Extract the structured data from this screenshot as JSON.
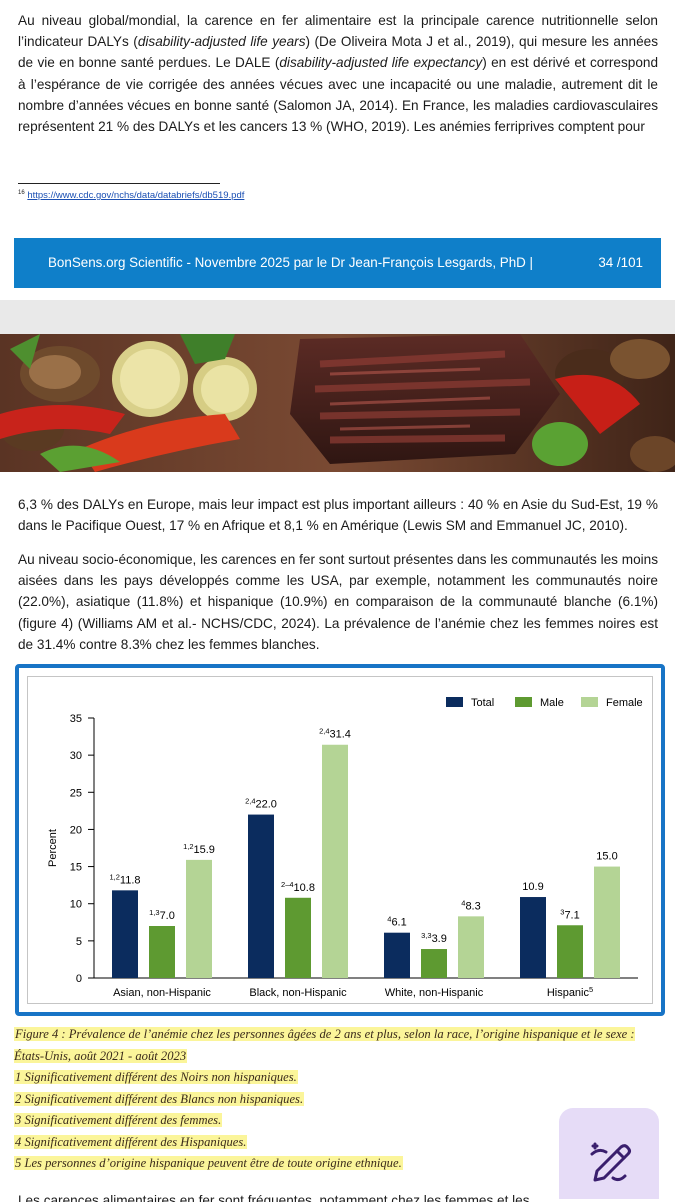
{
  "paragraph1": {
    "t1": "Au niveau global/mondial, la carence en fer alimentaire est la principale carence nutritionnelle selon l’indicateur DALYs (",
    "em1": "disability-adjusted life years",
    "t2": ") (De Oliveira Mota J et al., 2019), qui mesure les années de vie en bonne santé perdues. Le DALE (",
    "em2": "disability-adjusted life expectancy",
    "t3": ") en est dérivé et correspond à l’espérance de vie corrigée des années vécues avec une incapacité ou une maladie, autrement dit le nombre d’années vécues en bonne santé (Salomon JA, 2014). En France, les maladies cardiovasculaires représentent 21 % des DALYs et les cancers 13 % (WHO, 2019). Les anémies ferriprives comptent pour"
  },
  "footnote": {
    "number": "16",
    "link": "https://www.cdc.gov/nchs/data/databriefs/db519.pdf"
  },
  "banner": {
    "text": "BonSens.org Scientific - Novembre 2025 par le Dr Jean-François Lesgards, PhD |",
    "page": "34 /101"
  },
  "paragraph2": "6,3 % des DALYs en Europe, mais leur impact est plus important ailleurs : 40 % en Asie du Sud-Est, 19 % dans le Pacifique Ouest, 17 % en Afrique et 8,1 % en Amérique (Lewis SM and Emmanuel JC, 2010).",
  "paragraph3": "Au niveau socio-économique, les carences en fer sont surtout présentes dans les communautés les moins aisées dans les pays développés comme les USA, par exemple, notamment les communautés noire (22.0%), asiatique (11.8%) et hispanique (10.9%) en comparaison de la communauté blanche (6.1%) (figure 4) (Williams AM et al.- NCHS/CDC, 2024). La prévalence de l’anémie chez les femmes noires est de 31.4% contre 8.3% chez les femmes blanches.",
  "chart_data": {
    "type": "bar",
    "ylabel": "Percent",
    "ylim": [
      0,
      35
    ],
    "yticks": [
      "0",
      "5",
      "10",
      "15",
      "20",
      "25",
      "30",
      "35"
    ],
    "categories": [
      "Asian, non-Hispanic",
      "Black, non-Hispanic",
      "White, non-Hispanic",
      "Hispanic"
    ],
    "category_superscripts": [
      "",
      "",
      "",
      "5"
    ],
    "legend_position": "top-right",
    "series": [
      {
        "name": "Total",
        "color": "#0b2c5e",
        "values": [
          11.8,
          22.0,
          6.1,
          10.9
        ],
        "labels": [
          "11.8",
          "22.0",
          "6.1",
          "10.9"
        ],
        "superscripts": [
          "1,2",
          "2,4",
          "4",
          ""
        ]
      },
      {
        "name": "Male",
        "color": "#5e9a31",
        "values": [
          7.0,
          10.8,
          3.9,
          7.1
        ],
        "labels": [
          "7.0",
          "10.8",
          "3.9",
          "7.1"
        ],
        "superscripts": [
          "1,3",
          "2–4",
          "3,3",
          "3"
        ]
      },
      {
        "name": "Female",
        "color": "#b4d495",
        "values": [
          15.9,
          31.4,
          8.3,
          15.0
        ],
        "labels": [
          "15.9",
          "31.4",
          "8.3",
          "15.0"
        ],
        "superscripts": [
          "1,2",
          "2,4",
          "4",
          ""
        ]
      }
    ]
  },
  "caption": {
    "title": "Figure 4 : Prévalence de l’anémie chez les personnes âgées de 2 ans et plus, selon la race, l’origine hispanique et le sexe : États-Unis, août 2021 - août 2023",
    "note1": "1 Significativement différent des Noirs non hispaniques.",
    "note2": "2 Significativement différent des Blancs non hispaniques.",
    "note3": "3 Significativement différent des femmes.",
    "note4": "4 Significativement différent des Hispaniques.",
    "note5": "5 Les personnes d’origine hispanique peuvent être de toute origine ethnique."
  },
  "edit_button": {
    "icon": "pen-sparkle-icon",
    "color": "#e6dcf7"
  },
  "bottom_partial": "Les carences alimentaires en fer sont fréquentes, notamment chez les femmes et les enfants..."
}
